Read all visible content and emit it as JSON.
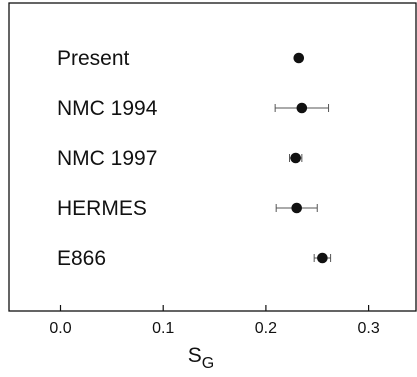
{
  "chart_data": {
    "type": "scatter",
    "orientation": "horizontal-error-bars",
    "xlabel": "S",
    "xlabel_subscript": "G",
    "xlim": [
      -0.05,
      0.34
    ],
    "x_ticks": [
      0.0,
      0.1,
      0.2,
      0.3
    ],
    "x_tick_labels": [
      "0.0",
      "0.1",
      "0.2",
      "0.3"
    ],
    "grid": false,
    "legend": "none",
    "points": [
      {
        "label": "Present",
        "value": 0.232,
        "error": 0.0
      },
      {
        "label": "NMC 1994",
        "value": 0.235,
        "error": 0.026
      },
      {
        "label": "NMC 1997",
        "value": 0.229,
        "error": 0.006
      },
      {
        "label": "HERMES",
        "value": 0.23,
        "error": 0.02
      },
      {
        "label": "E866",
        "value": 0.255,
        "error": 0.008
      }
    ]
  },
  "colors": {
    "marker": "#111111",
    "axis": "#111111",
    "error_bar": "#555555",
    "background": "#ffffff"
  }
}
